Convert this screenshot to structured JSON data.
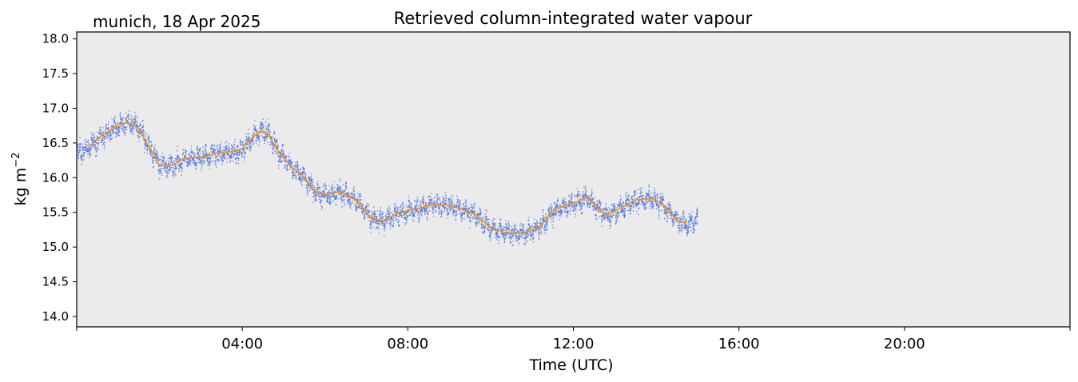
{
  "header": {
    "location_date": "munich, 18 Apr 2025"
  },
  "chart_data": {
    "type": "scatter",
    "title": "Retrieved column-integrated water vapour",
    "xlabel": "Time (UTC)",
    "ylabel": "kg m",
    "ylabel_sup": "−2",
    "xlim_hours": [
      0,
      24
    ],
    "ylim": [
      13.85,
      18.1
    ],
    "yticks": [
      14.0,
      14.5,
      15.0,
      15.5,
      16.0,
      16.5,
      17.0,
      17.5,
      18.0
    ],
    "ytick_labels": [
      "14.0",
      "14.5",
      "15.0",
      "15.5",
      "16.0",
      "16.5",
      "17.0",
      "17.5",
      "18.0"
    ],
    "xticks_hours": [
      4,
      8,
      12,
      16,
      20
    ],
    "xtick_labels": [
      "04:00",
      "08:00",
      "12:00",
      "16:00",
      "20:00"
    ],
    "grid": false,
    "plot_background": "#ebebeb",
    "series": [
      {
        "kind": "scatter",
        "color": "#4169e1",
        "note_spread_kg_m2": 0.3,
        "hours": [
          0.0,
          0.3,
          0.6,
          0.9,
          1.2,
          1.35,
          1.5,
          1.8,
          2.0,
          2.3,
          2.6,
          3.0,
          3.4,
          3.8,
          4.0,
          4.25,
          4.45,
          4.6,
          4.9,
          5.2,
          5.5,
          5.8,
          6.0,
          6.4,
          6.8,
          7.1,
          7.4,
          7.8,
          8.2,
          8.6,
          9.0,
          9.3,
          9.6,
          10.0,
          10.4,
          10.8,
          11.2,
          11.5,
          11.8,
          12.1,
          12.3,
          12.5,
          12.8,
          13.1,
          13.5,
          13.9,
          14.2,
          14.5,
          14.75,
          14.9,
          15.0
        ],
        "values": [
          16.35,
          16.45,
          16.6,
          16.72,
          16.8,
          16.78,
          16.7,
          16.4,
          16.18,
          16.18,
          16.28,
          16.3,
          16.35,
          16.38,
          16.42,
          16.58,
          16.68,
          16.65,
          16.35,
          16.15,
          16.0,
          15.78,
          15.75,
          15.8,
          15.65,
          15.42,
          15.38,
          15.5,
          15.55,
          15.62,
          15.6,
          15.55,
          15.48,
          15.28,
          15.2,
          15.2,
          15.3,
          15.52,
          15.6,
          15.65,
          15.72,
          15.62,
          15.45,
          15.55,
          15.68,
          15.7,
          15.6,
          15.38,
          15.32,
          15.38,
          15.4
        ]
      },
      {
        "kind": "line",
        "color": "#ff8c00",
        "hours": [
          0.3,
          0.6,
          0.9,
          1.2,
          1.35,
          1.5,
          1.8,
          2.0,
          2.3,
          2.6,
          3.0,
          3.4,
          3.8,
          4.0,
          4.25,
          4.45,
          4.6,
          4.9,
          5.2,
          5.5,
          5.8,
          6.0,
          6.4,
          6.8,
          7.1,
          7.4,
          7.8,
          8.2,
          8.6,
          9.0,
          9.3,
          9.6,
          10.0,
          10.4,
          10.8,
          11.2,
          11.5,
          11.8,
          12.1,
          12.3,
          12.5,
          12.8,
          13.1,
          13.5,
          13.9,
          14.2,
          14.5,
          14.75
        ],
        "values": [
          16.45,
          16.6,
          16.72,
          16.8,
          16.78,
          16.7,
          16.4,
          16.18,
          16.18,
          16.28,
          16.3,
          16.35,
          16.38,
          16.42,
          16.58,
          16.68,
          16.65,
          16.35,
          16.15,
          16.0,
          15.78,
          15.75,
          15.8,
          15.65,
          15.42,
          15.38,
          15.5,
          15.55,
          15.62,
          15.6,
          15.55,
          15.48,
          15.28,
          15.2,
          15.2,
          15.3,
          15.52,
          15.6,
          15.65,
          15.72,
          15.62,
          15.45,
          15.55,
          15.68,
          15.7,
          15.6,
          15.38,
          15.35
        ]
      }
    ]
  }
}
